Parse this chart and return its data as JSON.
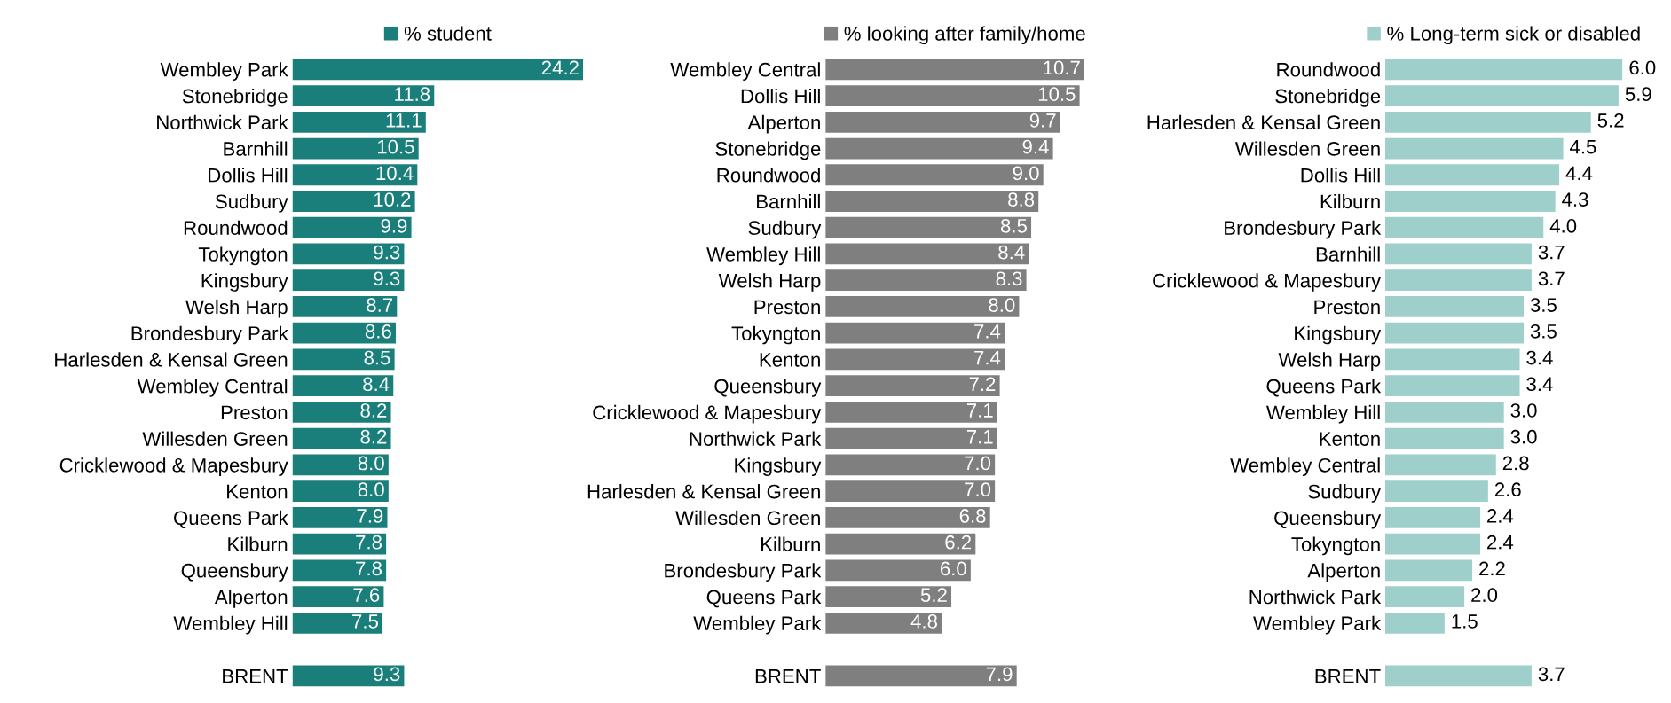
{
  "chart_data": [
    {
      "type": "bar",
      "orientation": "horizontal",
      "legend": "top",
      "tick_labels": "y",
      "categories": [
        "Wembley Park",
        "Stonebridge",
        "Northwick Park",
        "Barnhill",
        "Dollis Hill",
        "Sudbury",
        "Roundwood",
        "Tokyngton",
        "Kingsbury",
        "Welsh Harp",
        "Brondesbury Park",
        "Harlesden & Kensal Green",
        "Wembley Central",
        "Preston",
        "Willesden Green",
        "Cricklewood & Mapesbury",
        "Kenton",
        "Queens Park",
        "Kilburn",
        "Queensbury",
        "Alperton",
        "Wembley Hill",
        null,
        "BRENT"
      ],
      "series": [
        {
          "name": "% student",
          "color": "#1a7f7a",
          "values": [
            24.2,
            11.8,
            11.1,
            10.5,
            10.4,
            10.2,
            9.9,
            9.3,
            9.3,
            8.7,
            8.6,
            8.5,
            8.4,
            8.2,
            8.2,
            8.0,
            8.0,
            7.9,
            7.8,
            7.8,
            7.6,
            7.5,
            null,
            9.3
          ],
          "value_labels": [
            "24.2",
            "11.8",
            "11.1",
            "10.5",
            "10.4",
            "10.2",
            "9.9",
            "9.3",
            "9.3",
            "8.7",
            "8.6",
            "8.5",
            "8.4",
            "8.2",
            "8.2",
            "8.0",
            "8.0",
            "7.9",
            "7.8",
            "7.8",
            "7.6",
            "7.5",
            null,
            "9.3"
          ]
        }
      ]
    },
    {
      "type": "bar",
      "orientation": "horizontal",
      "legend": "top",
      "tick_labels": "y",
      "categories": [
        "Wembley Central",
        "Dollis Hill",
        "Alperton",
        "Stonebridge",
        "Roundwood",
        "Barnhill",
        "Sudbury",
        "Wembley Hill",
        "Welsh Harp",
        "Preston",
        "Tokyngton",
        "Kenton",
        "Queensbury",
        "Cricklewood & Mapesbury",
        "Northwick Park",
        "Kingsbury",
        "Harlesden & Kensal Green",
        "Willesden Green",
        "Kilburn",
        "Brondesbury Park",
        "Queens Park",
        "Wembley Park",
        null,
        "BRENT"
      ],
      "series": [
        {
          "name": "% looking after family/home",
          "color": "#7f7f7f",
          "values": [
            10.7,
            10.5,
            9.7,
            9.4,
            9.0,
            8.8,
            8.5,
            8.4,
            8.3,
            8.0,
            7.4,
            7.4,
            7.2,
            7.1,
            7.1,
            7.0,
            7.0,
            6.8,
            6.2,
            6.0,
            5.2,
            4.8,
            null,
            7.9
          ],
          "value_labels": [
            "10.7",
            "10.5",
            "9.7",
            "9.4",
            "9.0",
            "8.8",
            "8.5",
            "8.4",
            "8.3",
            "8.0",
            "7.4",
            "7.4",
            "7.2",
            "7.1",
            "7.1",
            "7.0",
            "7.0",
            "6.8",
            "6.2",
            "6.0",
            "5.2",
            "4.8",
            null,
            "7.9"
          ]
        }
      ]
    },
    {
      "type": "bar",
      "orientation": "horizontal",
      "legend": "top",
      "tick_labels": "y",
      "categories": [
        "Roundwood",
        "Stonebridge",
        "Harlesden & Kensal Green",
        "Willesden Green",
        "Dollis Hill",
        "Kilburn",
        "Brondesbury Park",
        "Barnhill",
        "Cricklewood & Mapesbury",
        "Preston",
        "Kingsbury",
        "Welsh Harp",
        "Queens Park",
        "Wembley Hill",
        "Kenton",
        "Wembley Central",
        "Sudbury",
        "Queensbury",
        "Tokyngton",
        "Alperton",
        "Northwick Park",
        "Wembley Park",
        null,
        "BRENT"
      ],
      "series": [
        {
          "name": "% Long-term sick or disabled",
          "color": "#9ecfca",
          "values": [
            6.0,
            5.9,
            5.2,
            4.5,
            4.4,
            4.3,
            4.0,
            3.7,
            3.7,
            3.5,
            3.5,
            3.4,
            3.4,
            3.0,
            3.0,
            2.8,
            2.6,
            2.4,
            2.4,
            2.2,
            2.0,
            1.5,
            null,
            3.7
          ],
          "value_labels": [
            "6.0",
            "5.9",
            "5.2",
            "4.5",
            "4.4",
            "4.3",
            "4.0",
            "3.7",
            "3.7",
            "3.5",
            "3.5",
            "3.4",
            "3.4",
            "3.0",
            "3.0",
            "2.8",
            "2.6",
            "2.4",
            "2.4",
            "2.2",
            "2.0",
            "1.5",
            null,
            "3.7"
          ]
        }
      ]
    }
  ]
}
